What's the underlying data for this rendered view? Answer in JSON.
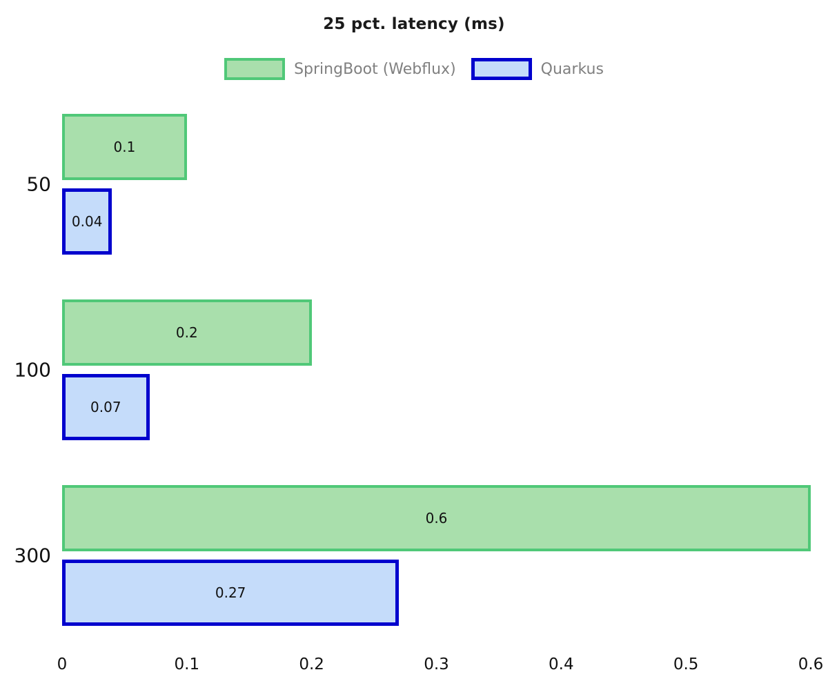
{
  "title": "25 pct. latency (ms)",
  "chart_data": {
    "type": "bar",
    "orientation": "horizontal",
    "title": "25 pct. latency (ms)",
    "categories": [
      "50",
      "100",
      "300"
    ],
    "series": [
      {
        "name": "SpringBoot (Webflux)",
        "values": [
          0.1,
          0.2,
          0.6
        ],
        "labels": [
          "0.1",
          "0.2",
          "0.6"
        ],
        "fill": "#a9dfac",
        "border": "#50c878",
        "border_width": 4
      },
      {
        "name": "Quarkus",
        "values": [
          0.04,
          0.07,
          0.27
        ],
        "labels": [
          "0.04",
          "0.07",
          "0.27"
        ],
        "fill": "#c5dcfa",
        "border": "#0000cd",
        "border_width": 5
      }
    ],
    "xlim": [
      0,
      0.6
    ],
    "x_ticks": [
      "0",
      "0.1",
      "0.2",
      "0.3",
      "0.4",
      "0.5",
      "0.6"
    ],
    "grid": false,
    "legend_position": "top-center",
    "legend_text_color": "#808080",
    "value_labels": "centered-inside-bars"
  }
}
